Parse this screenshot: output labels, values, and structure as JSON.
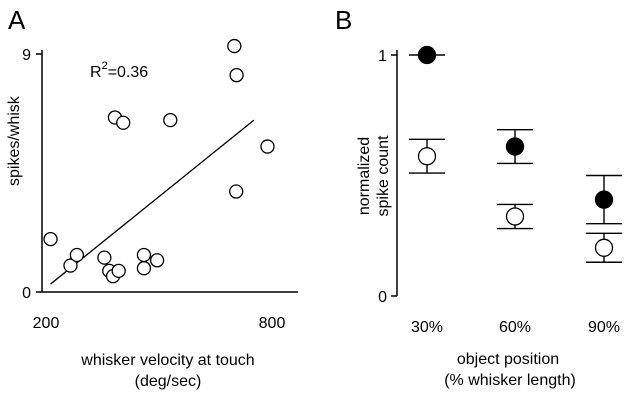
{
  "chart_data": [
    {
      "panel": "A",
      "type": "scatter",
      "xlabel_line1": "whisker velocity at touch",
      "xlabel_line2": "(deg/sec)",
      "ylabel": "spikes/whisk",
      "xlim": [
        200,
        800
      ],
      "ylim": [
        0,
        9
      ],
      "x_tick_labels": [
        "200",
        "800"
      ],
      "y_tick_labels": [
        "0",
        "9"
      ],
      "annotation": {
        "base": "R",
        "sup": "2",
        "rest": "=0.36"
      },
      "fit_line": {
        "x": [
          212,
          752
        ],
        "y": [
          0.3,
          6.5
        ]
      },
      "points": [
        {
          "x": 212,
          "y": 2.0
        },
        {
          "x": 265,
          "y": 1.0
        },
        {
          "x": 282,
          "y": 1.4
        },
        {
          "x": 355,
          "y": 1.3
        },
        {
          "x": 368,
          "y": 0.8
        },
        {
          "x": 378,
          "y": 0.6
        },
        {
          "x": 393,
          "y": 0.8
        },
        {
          "x": 383,
          "y": 6.6
        },
        {
          "x": 405,
          "y": 6.4
        },
        {
          "x": 460,
          "y": 1.4
        },
        {
          "x": 460,
          "y": 0.9
        },
        {
          "x": 495,
          "y": 1.2
        },
        {
          "x": 530,
          "y": 6.5
        },
        {
          "x": 700,
          "y": 9.3
        },
        {
          "x": 706,
          "y": 8.2
        },
        {
          "x": 705,
          "y": 3.8
        },
        {
          "x": 788,
          "y": 5.5
        }
      ]
    },
    {
      "panel": "B",
      "type": "scatter",
      "xlabel_line1": "object position",
      "xlabel_line2": "(% whisker length)",
      "ylabel_line1": "normalized",
      "ylabel_line2": "spike count",
      "ylim": [
        0,
        1
      ],
      "y_tick_labels": [
        "0",
        "1"
      ],
      "categories": [
        "30%",
        "60%",
        "90%"
      ],
      "series": [
        {
          "marker": "filled",
          "values": [
            1.0,
            0.62,
            0.4
          ],
          "err": [
            0.0,
            0.07,
            0.1
          ]
        },
        {
          "marker": "open",
          "values": [
            0.58,
            0.33,
            0.2
          ],
          "err": [
            0.07,
            0.05,
            0.06
          ]
        }
      ]
    }
  ]
}
